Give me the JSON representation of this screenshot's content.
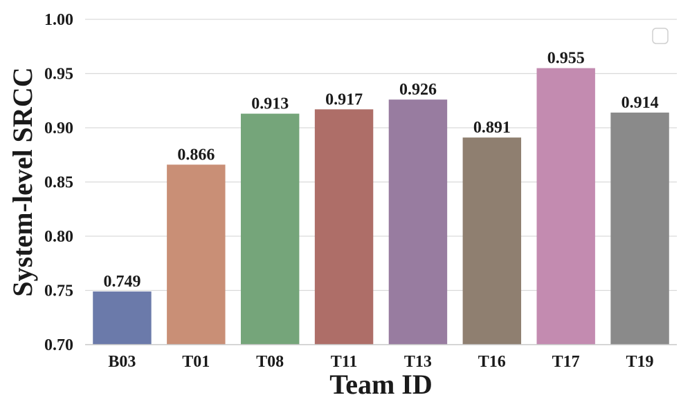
{
  "chart_data": {
    "type": "bar",
    "title": "",
    "xlabel": "Team ID",
    "ylabel": "System-level SRCC",
    "categories": [
      "B03",
      "T01",
      "T08",
      "T11",
      "T13",
      "T16",
      "T17",
      "T19"
    ],
    "values": [
      0.749,
      0.866,
      0.913,
      0.917,
      0.926,
      0.891,
      0.955,
      0.914
    ],
    "value_labels": [
      "0.749",
      "0.866",
      "0.913",
      "0.917",
      "0.926",
      "0.891",
      "0.955",
      "0.914"
    ],
    "colors": [
      "#6b7aaa",
      "#c98f76",
      "#75a57a",
      "#ae6e68",
      "#987ca0",
      "#8f7f70",
      "#c38bb0",
      "#8a8a8a"
    ],
    "ylim": [
      0.7,
      1.0
    ],
    "yticks": [
      "0.70",
      "0.75",
      "0.80",
      "0.85",
      "0.90",
      "0.95",
      "1.00"
    ],
    "grid": true,
    "legend": {
      "placement": "top-right",
      "entries": []
    }
  }
}
